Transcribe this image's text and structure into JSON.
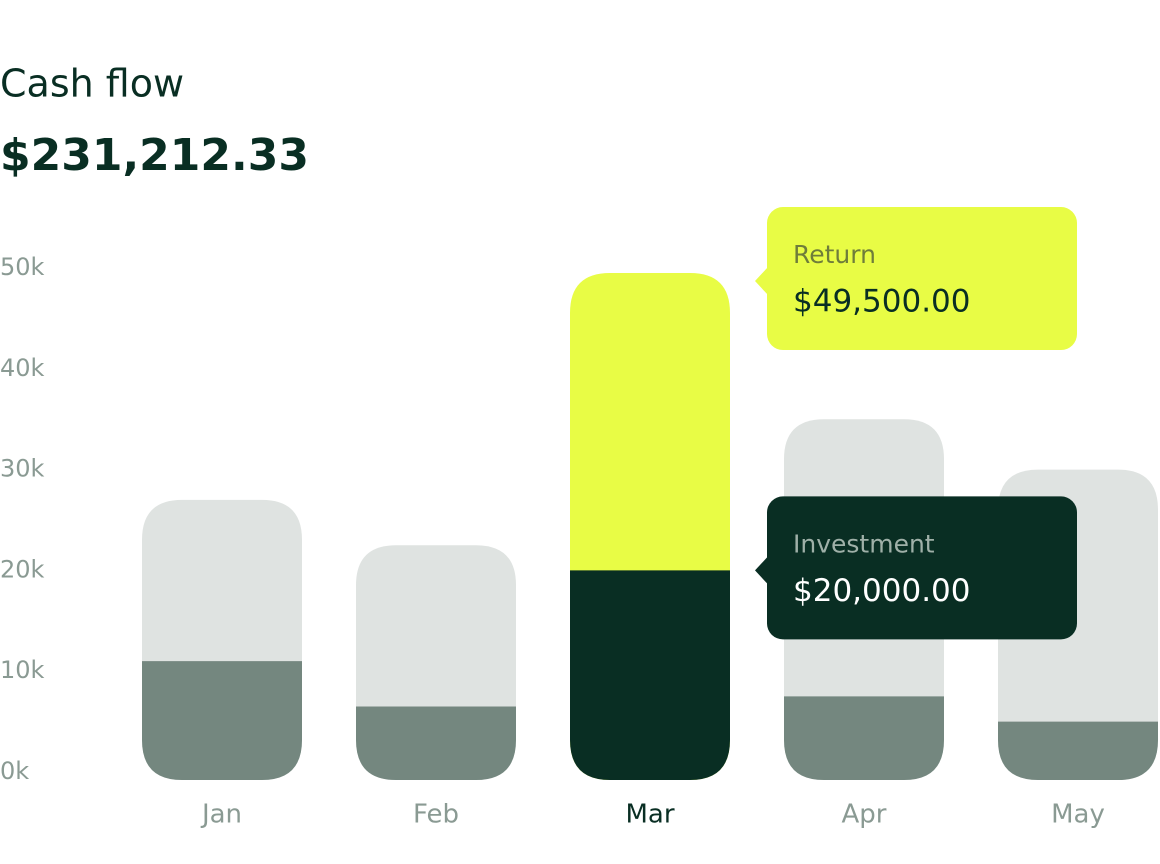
{
  "chart_data": {
    "type": "bar",
    "mode": "overlap",
    "title": "Cash flow",
    "subtitle": "$231,212.33",
    "categories": [
      "Jan",
      "Feb",
      "Mar",
      "Apr",
      "May"
    ],
    "highlight": 2,
    "series": [
      {
        "name": "Return",
        "color": "#dfe3e1",
        "highlight_color": "#e8fc45",
        "values": [
          27000,
          22500,
          49500,
          35000,
          30000
        ],
        "value_labels": [
          null,
          null,
          "$49,500.00",
          null,
          null
        ]
      },
      {
        "name": "Investment",
        "color": "#74877f",
        "highlight_color": "#092e23",
        "values": [
          11000,
          6500,
          20000,
          7500,
          5000
        ],
        "value_labels": [
          null,
          null,
          "$20,000.00",
          null,
          null
        ]
      }
    ],
    "ylim": [
      0,
      50000
    ],
    "yticks": [
      {
        "value": 0,
        "label": "0k"
      },
      {
        "value": 10000,
        "label": "10k"
      },
      {
        "value": 20000,
        "label": "20k"
      },
      {
        "value": 30000,
        "label": "30k"
      },
      {
        "value": 40000,
        "label": "40k"
      },
      {
        "value": 50000,
        "label": "50k"
      }
    ]
  }
}
